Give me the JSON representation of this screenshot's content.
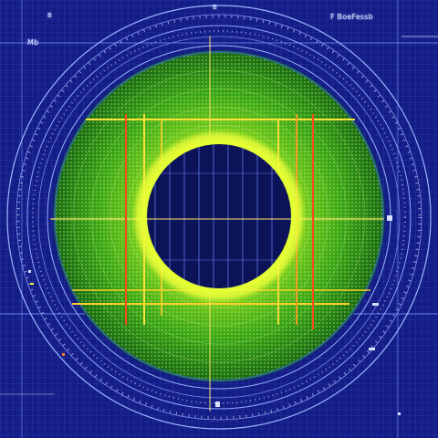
{
  "labels": {
    "top_left": "B",
    "top_center": "B",
    "top_right": "F  BoeFessb",
    "left": "Mb"
  },
  "colors": {
    "background": "#141d86",
    "grid": "#3848c4",
    "ring_line": "#9ab4ff",
    "dot_field_outer": "#1d8a14",
    "dot_field_inner": "#7ad021",
    "dot": "#b8ff6a",
    "core": "#0c1358",
    "core_line": "#5f78e8",
    "glow": "#d8ff2a",
    "crosshair_yellow": "#ffe23a",
    "crosshair_red": "#ff4a1e"
  }
}
